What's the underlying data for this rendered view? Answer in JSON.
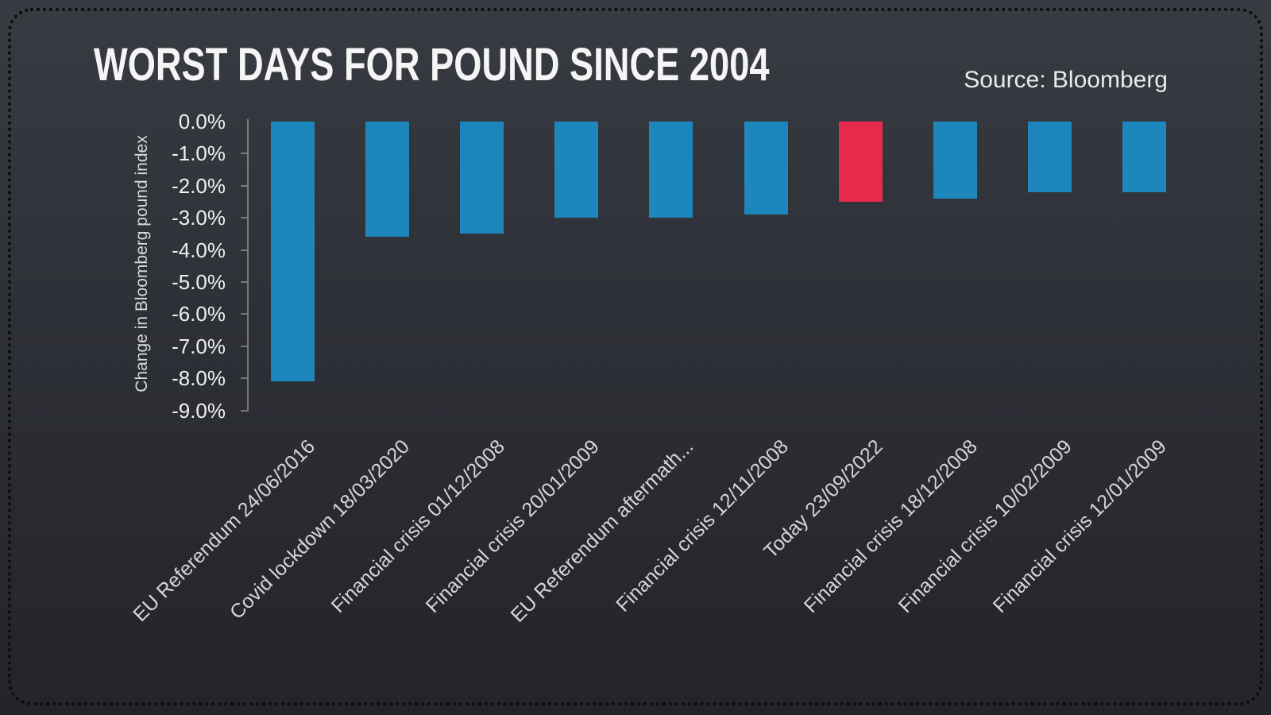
{
  "header": {
    "title": "WORST DAYS FOR POUND SINCE 2004",
    "source": "Source: Bloomberg"
  },
  "chart_data": {
    "type": "bar",
    "title": "WORST DAYS FOR POUND SINCE 2004",
    "xlabel": "",
    "ylabel": "Change in Bloomberg pound index",
    "ylim": [
      -9.0,
      0.0
    ],
    "ytick_step": 1.0,
    "ytick_labels": [
      "0.0%",
      "-1.0%",
      "-2.0%",
      "-3.0%",
      "-4.0%",
      "-5.0%",
      "-6.0%",
      "-7.0%",
      "-8.0%",
      "-9.0%"
    ],
    "grid": false,
    "legend": "none",
    "categories": [
      "EU Referendum 24/06/2016",
      "Covid lockdown 18/03/2020",
      "Financial crisis 01/12/2008",
      "Financial crisis 20/01/2009",
      "EU Referendum aftermath...",
      "Financial crisis 12/11/2008",
      "Today 23/09/2022",
      "Financial crisis 18/12/2008",
      "Financial crisis 10/02/2009",
      "Financial crisis 12/01/2009"
    ],
    "values": [
      -8.1,
      -3.6,
      -3.5,
      -3.0,
      -3.0,
      -2.9,
      -2.5,
      -2.4,
      -2.2,
      -2.2
    ],
    "highlight_index": 6,
    "colors": {
      "bar": "#1d87bd",
      "highlight": "#e62a4b"
    }
  }
}
